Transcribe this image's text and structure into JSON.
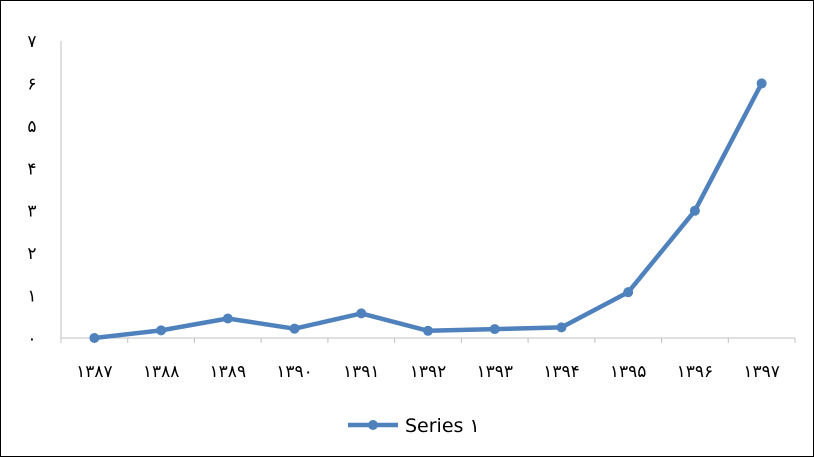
{
  "chart_data": {
    "type": "line",
    "categories": [
      "۱۳۸۷",
      "۱۳۸۸",
      "۱۳۸۹",
      "۱۳۹۰",
      "۱۳۹۱",
      "۱۳۹۲",
      "۱۳۹۳",
      "۱۳۹۴",
      "۱۳۹۵",
      "۱۳۹۶",
      "۱۳۹۷"
    ],
    "series": [
      {
        "name": "Series ۱",
        "values": [
          0.0,
          0.18,
          0.46,
          0.22,
          0.58,
          0.17,
          0.21,
          0.25,
          1.08,
          3.0,
          6.0
        ],
        "color": "#4F81BD"
      }
    ],
    "ylim": [
      0,
      7
    ],
    "yticks": [
      {
        "value": 0,
        "label": "۰"
      },
      {
        "value": 1,
        "label": "۱"
      },
      {
        "value": 2,
        "label": "۲"
      },
      {
        "value": 3,
        "label": "۳"
      },
      {
        "value": 4,
        "label": "۴"
      },
      {
        "value": 5,
        "label": "۵"
      },
      {
        "value": 6,
        "label": "۶"
      },
      {
        "value": 7,
        "label": "۷"
      }
    ],
    "title": "",
    "xlabel": "",
    "ylabel": "",
    "grid": false,
    "legend_position": "bottom",
    "axis_color": "#C0C0C0"
  }
}
